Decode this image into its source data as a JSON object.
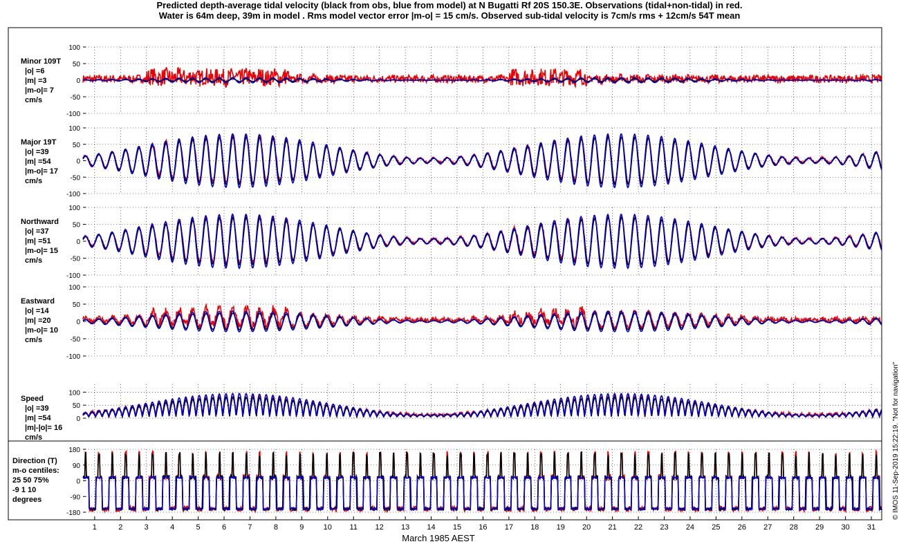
{
  "title": {
    "line1": "Predicted depth-average tidal velocity (black from obs, blue from model) at N Bugatti Rf 20S 150.3E. Observations (tidal+non-tidal) in red.",
    "line2": "Water is 64m deep, 39m in model . Rms model vector error |m-o| = 15 cm/s. Observed sub-tidal velocity is 7cm/s rms + 12cm/s 54T mean"
  },
  "credit": "© IMOS 11-Sep-2019 15:22:19. \"Not for navigation\"",
  "colors": {
    "observed_total": "#ee0000",
    "tidal_from_obs": "#000000",
    "model": "#0000cc",
    "grid": "#000000"
  },
  "chart_data": {
    "type": "line",
    "xlabel": "March 1985 AEST",
    "x_ticks": [
      "1",
      "2",
      "3",
      "4",
      "5",
      "6",
      "7",
      "8",
      "9",
      "10",
      "11",
      "12",
      "13",
      "14",
      "15",
      "16",
      "17",
      "18",
      "19",
      "20",
      "21",
      "22",
      "23",
      "24",
      "25",
      "26",
      "27",
      "28",
      "29",
      "30",
      "31"
    ],
    "xlim": [
      0.55,
      31.4
    ],
    "panels": [
      {
        "id": "minor",
        "labels": [
          "Minor 109T",
          "|o| =6",
          "|m| =3",
          "|m-o|= 7",
          "cm/s"
        ],
        "ylim": [
          -100,
          100
        ],
        "yticks": [
          "100",
          "50",
          "0",
          "-50",
          "-100"
        ],
        "tidal_amp": 4,
        "model_amp": 8,
        "noise_amp": 18,
        "obs_bias": 5
      },
      {
        "id": "major",
        "labels": [
          "Major 19T",
          "|o| =39",
          "|m| =54",
          "|m-o|= 17",
          "cm/s"
        ],
        "ylim": [
          -100,
          100
        ],
        "yticks": [
          "100",
          "50",
          "0",
          "-50",
          "-100"
        ],
        "tidal_amp": 72,
        "model_amp": 82,
        "noise_amp": 8,
        "obs_bias": 2
      },
      {
        "id": "northward",
        "labels": [
          "Northward",
          "|o| =37",
          "|m| =51",
          "|m-o|= 15",
          "cm/s"
        ],
        "ylim": [
          -100,
          100
        ],
        "yticks": [
          "100",
          "50",
          "0",
          "-50",
          "-100"
        ],
        "tidal_amp": 70,
        "model_amp": 80,
        "noise_amp": 8,
        "obs_bias": 2
      },
      {
        "id": "eastward",
        "labels": [
          "Eastward",
          "|o| =14",
          "|m| =20",
          "|m-o|= 10",
          "cm/s"
        ],
        "ylim": [
          -100,
          100
        ],
        "yticks": [
          "100",
          "50",
          "0",
          "-50",
          "-100"
        ],
        "tidal_amp": 24,
        "model_amp": 30,
        "noise_amp": 16,
        "obs_bias": 6
      },
      {
        "id": "speed",
        "labels": [
          "Speed",
          "|o| =39",
          "|m| =54",
          "|m|-|o|= 16",
          "cm/s"
        ],
        "ylim": [
          0,
          130
        ],
        "yticks": [
          "100",
          "50",
          "0"
        ],
        "tidal_amp": 75,
        "model_amp": 90,
        "noise_amp": 10,
        "obs_bias": 3
      },
      {
        "id": "direction",
        "labels": [
          "Direction (T)",
          "m-o centiles:",
          "25  50  75%",
          "-9   1  10",
          "degrees"
        ],
        "ylim": [
          -180,
          180
        ],
        "yticks": [
          "180",
          "90",
          "0",
          "-90",
          "-180"
        ],
        "tidal_amp": 180,
        "model_amp": 180,
        "noise_amp": 30,
        "obs_bias": 0
      }
    ]
  }
}
